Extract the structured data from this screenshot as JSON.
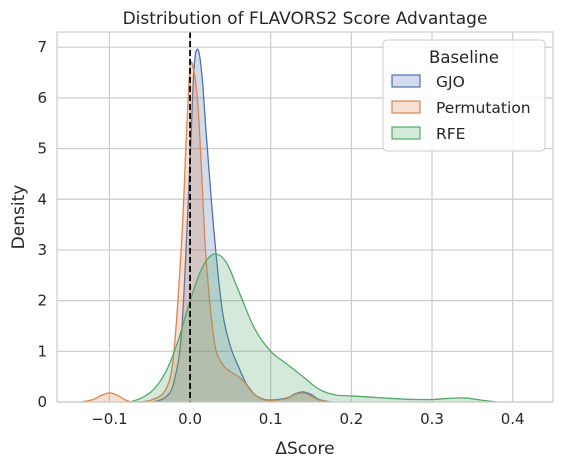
{
  "chart_data": {
    "type": "area",
    "title": "Distribution of FLAVORS2 Score Advantage",
    "xlabel": "ΔScore",
    "ylabel": "Density",
    "xlim": [
      -0.165,
      0.45
    ],
    "ylim": [
      0,
      7.3
    ],
    "xticks": [
      -0.1,
      0.0,
      0.1,
      0.2,
      0.3,
      0.4
    ],
    "xtick_labels": [
      "−0.1",
      "0.0",
      "0.1",
      "0.2",
      "0.3",
      "0.4"
    ],
    "yticks": [
      0,
      1,
      2,
      3,
      4,
      5,
      6,
      7
    ],
    "ytick_labels": [
      "0",
      "1",
      "2",
      "3",
      "4",
      "5",
      "6",
      "7"
    ],
    "grid": true,
    "legend": {
      "title": "Baseline",
      "placement": "top-right"
    },
    "reference_line": {
      "x": 0.0,
      "style": "dashed",
      "color": "#000000"
    },
    "series": [
      {
        "name": "GJO",
        "color": "#4c72b0",
        "fill": "#4c72b0",
        "x": [
          -0.045,
          -0.03,
          -0.02,
          -0.01,
          0.0,
          0.005,
          0.01,
          0.015,
          0.02,
          0.03,
          0.04,
          0.05,
          0.06,
          0.07,
          0.08,
          0.09,
          0.1,
          0.12,
          0.13,
          0.14,
          0.15,
          0.16,
          0.175
        ],
        "y": [
          0.0,
          0.1,
          0.4,
          1.5,
          4.8,
          6.6,
          6.95,
          6.4,
          5.3,
          3.3,
          1.8,
          1.1,
          0.7,
          0.35,
          0.15,
          0.06,
          0.04,
          0.08,
          0.16,
          0.2,
          0.15,
          0.05,
          0.0
        ]
      },
      {
        "name": "Permutation",
        "color": "#dd8452",
        "fill": "#dd8452",
        "x": [
          -0.135,
          -0.12,
          -0.11,
          -0.1,
          -0.09,
          -0.08,
          -0.07,
          -0.05,
          -0.03,
          -0.02,
          -0.01,
          -0.005,
          0.0,
          0.005,
          0.01,
          0.015,
          0.02,
          0.03,
          0.04,
          0.05,
          0.06,
          0.07,
          0.08,
          0.09,
          0.1,
          0.12,
          0.13,
          0.14,
          0.15,
          0.16,
          0.175
        ],
        "y": [
          0.0,
          0.05,
          0.13,
          0.18,
          0.13,
          0.04,
          0.0,
          0.03,
          0.25,
          1.0,
          3.3,
          5.1,
          6.6,
          6.5,
          5.8,
          4.3,
          2.8,
          1.2,
          0.75,
          0.6,
          0.5,
          0.35,
          0.15,
          0.05,
          0.03,
          0.07,
          0.15,
          0.18,
          0.12,
          0.04,
          0.0
        ]
      },
      {
        "name": "RFE",
        "color": "#55a868",
        "fill": "#55a868",
        "x": [
          -0.075,
          -0.06,
          -0.045,
          -0.03,
          -0.015,
          0.0,
          0.015,
          0.03,
          0.045,
          0.06,
          0.08,
          0.1,
          0.12,
          0.14,
          0.16,
          0.18,
          0.2,
          0.22,
          0.24,
          0.26,
          0.28,
          0.3,
          0.32,
          0.34,
          0.36,
          0.38
        ],
        "y": [
          0.0,
          0.08,
          0.25,
          0.6,
          1.2,
          2.0,
          2.65,
          2.92,
          2.75,
          2.2,
          1.45,
          1.0,
          0.75,
          0.5,
          0.25,
          0.14,
          0.12,
          0.1,
          0.08,
          0.06,
          0.05,
          0.05,
          0.07,
          0.08,
          0.04,
          0.0
        ]
      }
    ]
  }
}
